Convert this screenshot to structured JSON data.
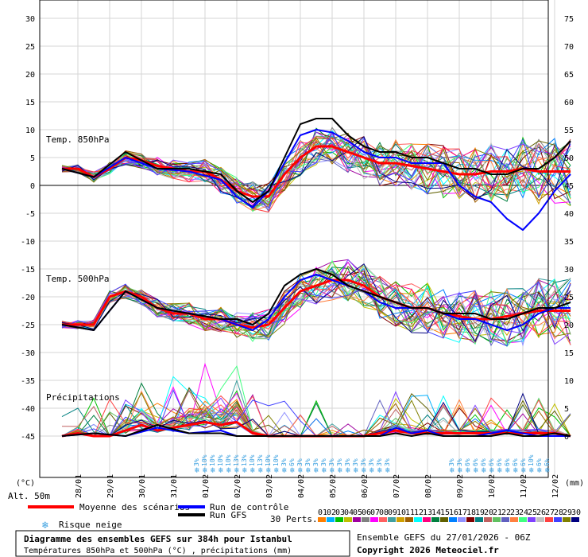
{
  "chart_data": {
    "type": "line",
    "left_axis": {
      "unit": "(°C)",
      "min": -45,
      "max": 30,
      "ticks": [
        30,
        25,
        20,
        15,
        10,
        5,
        0,
        -5,
        -10,
        -15,
        -20,
        -25,
        -30,
        -35,
        -40,
        -45
      ]
    },
    "right_axis": {
      "unit": "(mm)",
      "ticks": [
        75,
        70,
        65,
        60,
        55,
        50,
        45,
        40,
        35,
        30,
        25,
        20,
        15,
        10,
        5,
        0
      ]
    },
    "x_dates": [
      "28/01",
      "29/01",
      "30/01",
      "31/01",
      "01/02",
      "02/02",
      "03/02",
      "04/02",
      "05/02",
      "06/02",
      "07/02",
      "08/02",
      "09/02",
      "10/02",
      "11/02",
      "12/02"
    ],
    "x_start_label": "Alt. 50m",
    "panel_labels": {
      "t850": "Temp. 850hPa",
      "t500": "Temp. 500hPa",
      "precip": "Précipitations"
    },
    "snow_risk": {
      "group1": [
        "3%",
        "10%",
        "10%",
        "10%",
        "10%",
        "13%",
        "13%",
        "10%",
        "13%",
        "10%",
        "10%",
        "3%",
        "6%",
        "3%",
        "3%",
        "3%",
        "3%",
        "3%",
        "3%",
        "3%",
        "3%",
        "3%",
        "3%",
        "3%",
        "3%"
      ],
      "group2": [
        "3%",
        "3%",
        "6%",
        "6%",
        "6%",
        "6%",
        "6%",
        "6%",
        "6%",
        "6%",
        "10%",
        "6%",
        "6%"
      ]
    },
    "series": [
      {
        "name": "Moyenne des scénarios",
        "color": "#ff0000",
        "panel": "t850",
        "x": [
          0,
          0.5,
          1,
          1.5,
          2,
          2.5,
          3,
          3.5,
          4,
          4.5,
          5,
          5.5,
          6,
          6.5,
          7,
          7.5,
          8,
          8.5,
          9,
          9.5,
          10,
          10.5,
          11,
          11.5,
          12,
          12.5,
          13,
          13.5,
          14,
          14.5,
          15,
          15.5,
          16
        ],
        "values": [
          3,
          3,
          1.5,
          3,
          5,
          4.5,
          3.5,
          3,
          2.5,
          2.5,
          1,
          -1,
          -2,
          -2,
          2,
          5,
          7,
          7,
          6,
          5,
          4,
          4,
          3.5,
          3,
          2.5,
          2,
          2,
          2.5,
          2.5,
          3,
          2.5,
          2.5,
          2.5
        ]
      },
      {
        "name": "Run de contrôle",
        "color": "#0000ff",
        "panel": "t850",
        "x": [
          0,
          1,
          2,
          3,
          4,
          5,
          5.5,
          6,
          6.5,
          7,
          7.5,
          8,
          8.5,
          9,
          9.5,
          10,
          10.5,
          11,
          11.5,
          12,
          12.5,
          13,
          13.5,
          14,
          14.5,
          15,
          15.5,
          16
        ],
        "values": [
          3,
          1.5,
          5,
          3,
          2.5,
          1,
          -2,
          -4,
          -1,
          4,
          9,
          10,
          9.5,
          8,
          6,
          5,
          5,
          4,
          4,
          4,
          0,
          -2,
          -3,
          -6,
          -8,
          -5,
          -1,
          2
        ]
      },
      {
        "name": "Run GFS",
        "color": "#000000",
        "panel": "t850",
        "x": [
          0,
          1,
          2,
          3,
          4,
          5,
          5.5,
          6,
          6.5,
          7,
          7.5,
          8,
          8.5,
          9,
          9.5,
          10,
          10.5,
          11,
          11.5,
          12,
          12.5,
          13,
          13.5,
          14,
          14.5,
          15,
          15.5,
          16
        ],
        "values": [
          3,
          1.5,
          6,
          3,
          3,
          2,
          -1,
          -3,
          -1,
          5,
          11,
          12,
          12,
          9,
          7,
          6,
          6,
          5,
          5,
          4,
          3,
          3,
          2,
          2,
          3,
          3,
          5,
          8
        ]
      },
      {
        "name": "Moyenne des scénarios",
        "color": "#ff0000",
        "panel": "t500",
        "x": [
          0,
          0.5,
          1,
          1.5,
          2,
          2.5,
          3,
          3.5,
          4,
          4.5,
          5,
          5.5,
          6,
          6.5,
          7,
          7.5,
          8,
          8.5,
          9,
          9.5,
          10,
          10.5,
          11,
          11.5,
          12,
          12.5,
          13,
          13.5,
          14,
          14.5,
          15,
          15.5,
          16
        ],
        "values": [
          -25,
          -25,
          -25,
          -20,
          -19,
          -20,
          -22,
          -23,
          -23,
          -24,
          -24,
          -25,
          -25.5,
          -25,
          -22,
          -19,
          -18,
          -17,
          -17,
          -18,
          -20,
          -21,
          -22,
          -22,
          -23,
          -23.5,
          -24,
          -24,
          -23.5,
          -23,
          -22.5,
          -22.5,
          -22.5
        ]
      },
      {
        "name": "Run de contrôle",
        "color": "#0000ff",
        "panel": "t500",
        "x": [
          0,
          1,
          2,
          3,
          4,
          5,
          5.5,
          6,
          6.5,
          7,
          7.5,
          8,
          8.5,
          9,
          9.5,
          10,
          10.5,
          11,
          11.5,
          12,
          12.5,
          13,
          13.5,
          14,
          14.5,
          15,
          15.5,
          16
        ],
        "values": [
          -25,
          -26,
          -19,
          -22,
          -23,
          -24,
          -25,
          -26,
          -24,
          -20,
          -17,
          -16,
          -17,
          -18,
          -19,
          -21,
          -22,
          -22,
          -22,
          -23,
          -24,
          -24,
          -25,
          -26,
          -25,
          -23,
          -22,
          -22
        ]
      },
      {
        "name": "Run GFS",
        "color": "#000000",
        "panel": "t500",
        "x": [
          0,
          1,
          2,
          3,
          4,
          5,
          5.5,
          6,
          6.5,
          7,
          7.5,
          8,
          8.5,
          9,
          9.5,
          10,
          10.5,
          11,
          11.5,
          12,
          12.5,
          13,
          13.5,
          14,
          14.5,
          15,
          15.5,
          16
        ],
        "values": [
          -25,
          -26,
          -19,
          -22,
          -23,
          -24,
          -24,
          -25,
          -23,
          -18,
          -16,
          -15,
          -16,
          -18,
          -19,
          -20,
          -21,
          -22,
          -22,
          -23,
          -23,
          -23,
          -24,
          -24,
          -23,
          -22,
          -22,
          -21
        ]
      },
      {
        "name": "Moyenne des scénarios",
        "color": "#ff0000",
        "panel": "precip",
        "x": [
          0,
          0.5,
          1,
          1.5,
          2,
          2.5,
          3,
          3.5,
          4,
          4.5,
          5,
          5.5,
          6,
          6.5,
          7,
          7.5,
          8,
          8.5,
          9,
          9.5,
          10,
          10.5,
          11,
          11.5,
          12,
          12.5,
          13,
          13.5,
          14,
          14.5,
          15,
          15.5,
          16
        ],
        "values": [
          0,
          0.5,
          0,
          0,
          1,
          2,
          1,
          1.5,
          2,
          2.5,
          2,
          2.5,
          0.5,
          0,
          0,
          0,
          0,
          0,
          0,
          0,
          0.5,
          1,
          0.5,
          0.5,
          0.5,
          0.5,
          0.5,
          0.5,
          0.5,
          0.5,
          0.5,
          0.5,
          0
        ]
      },
      {
        "name": "Run de contrôle",
        "color": "#0000ff",
        "panel": "precip",
        "x": [
          0,
          1,
          2,
          3,
          4,
          5,
          5.5,
          6,
          7,
          8,
          9,
          10,
          10.5,
          11,
          11.5,
          12,
          12.5,
          13,
          13.5,
          14,
          14.5,
          15,
          15.5,
          16
        ],
        "values": [
          0,
          0.5,
          0,
          1.5,
          0.5,
          1,
          0,
          0,
          0,
          0,
          0,
          0,
          1.5,
          0.5,
          1,
          0,
          0,
          0,
          0.5,
          1,
          0.5,
          0,
          0,
          0
        ]
      },
      {
        "name": "Run GFS",
        "color": "#000000",
        "panel": "precip",
        "x": [
          0,
          1,
          2,
          3,
          4,
          5,
          5.5,
          6,
          7,
          8,
          9,
          10,
          10.5,
          11,
          11.5,
          12,
          12.5,
          13,
          13.5,
          14,
          14.5,
          15,
          15.5,
          16
        ],
        "values": [
          0,
          0.5,
          0,
          2,
          0.5,
          0.5,
          0,
          0,
          0,
          0,
          0,
          0,
          0.5,
          0,
          0.5,
          0,
          0,
          0,
          0,
          0.5,
          0,
          0,
          0.5,
          0
        ]
      }
    ]
  },
  "legend": {
    "mean": "Moyenne des scénarios",
    "control": "Run de contrôle",
    "gfs": "Run GFS",
    "snow": "Risque neige",
    "perts": "30 Perts.",
    "pert_numbers": [
      "01",
      "02",
      "03",
      "04",
      "05",
      "06",
      "07",
      "08",
      "09",
      "10",
      "11",
      "12",
      "13",
      "14",
      "15",
      "16",
      "17",
      "18",
      "19",
      "20",
      "21",
      "22",
      "23",
      "24",
      "25",
      "26",
      "27",
      "28",
      "29",
      "30"
    ],
    "pert_colors": [
      "#ff7f00",
      "#00b0ff",
      "#00c000",
      "#c0c000",
      "#a000a0",
      "#808080",
      "#ff00ff",
      "#ff6060",
      "#40a0a0",
      "#d0a000",
      "#a06000",
      "#00ffff",
      "#ff0080",
      "#008040",
      "#606000",
      "#0080ff",
      "#9090ff",
      "#800000",
      "#008080",
      "#c06060",
      "#60c060",
      "#6060c0",
      "#ff8040",
      "#40ff80",
      "#8040ff",
      "#c0c0c0",
      "#ff4040",
      "#4040ff",
      "#808000",
      "#000080"
    ]
  },
  "footer": {
    "title": "Diagramme des ensembles GEFS sur 384h pour Istanbul",
    "subtitle": "Températures 850hPa et 500hPa (°C) , précipitations (mm)",
    "run": "Ensemble GEFS du 27/01/2026 - 06Z",
    "copyright": "Copyright 2026 Meteociel.fr"
  }
}
